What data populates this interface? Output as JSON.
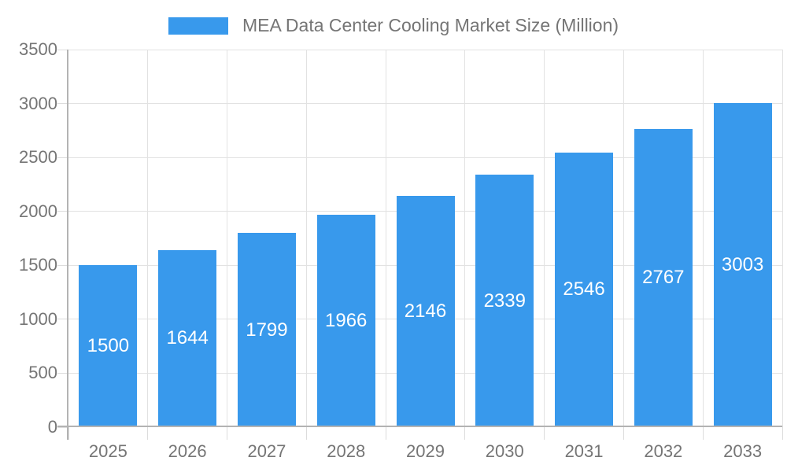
{
  "chart_data": {
    "type": "bar",
    "title": "MEA Data Center Cooling Market Size (Million)",
    "categories": [
      "2025",
      "2026",
      "2027",
      "2028",
      "2029",
      "2030",
      "2031",
      "2032",
      "2033"
    ],
    "values": [
      1500,
      1644,
      1799,
      1966,
      2146,
      2339,
      2546,
      2767,
      3003
    ],
    "series": [
      {
        "name": "MEA Data Center Cooling Market Size (Million)",
        "values": [
          1500,
          1644,
          1799,
          1966,
          2146,
          2339,
          2546,
          2767,
          3003
        ]
      }
    ],
    "xlabel": "",
    "ylabel": "",
    "ylim": [
      0,
      3500
    ],
    "y_ticks": [
      "0",
      "500",
      "1000",
      "1500",
      "2000",
      "2500",
      "3000",
      "3500"
    ],
    "grid": true,
    "legend_position": "top-center",
    "bar_value_labels_shown": true,
    "colors": {
      "bar": "#3899ec",
      "axis_line": "#b3b3b3",
      "grid_line": "#e2e2e2",
      "tick_line": "#dcdcdc",
      "axis_text": "#757575",
      "bar_label_text": "#ffffff",
      "background": "#ffffff"
    }
  }
}
